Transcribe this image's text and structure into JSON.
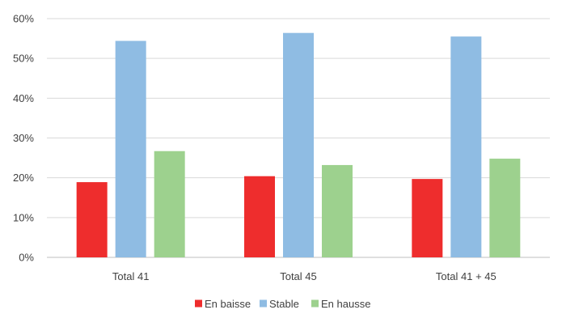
{
  "chart_data": {
    "type": "bar",
    "categories": [
      "Total 41",
      "Total 45",
      "Total 41 + 45"
    ],
    "series": [
      {
        "name": "En baisse",
        "color": "#ee2d2d",
        "values": [
          18.9,
          20.4,
          19.7
        ]
      },
      {
        "name": "Stable",
        "color": "#8fbce3",
        "values": [
          54.4,
          56.4,
          55.5
        ]
      },
      {
        "name": "En hausse",
        "color": "#9dd18e",
        "values": [
          26.7,
          23.2,
          24.8
        ]
      }
    ],
    "y_ticks": [
      "0%",
      "10%",
      "20%",
      "30%",
      "40%",
      "50%",
      "60%"
    ],
    "ylim": [
      0,
      60
    ],
    "grid": true,
    "legend_position": "bottom",
    "title": "",
    "xlabel": "",
    "ylabel": ""
  }
}
